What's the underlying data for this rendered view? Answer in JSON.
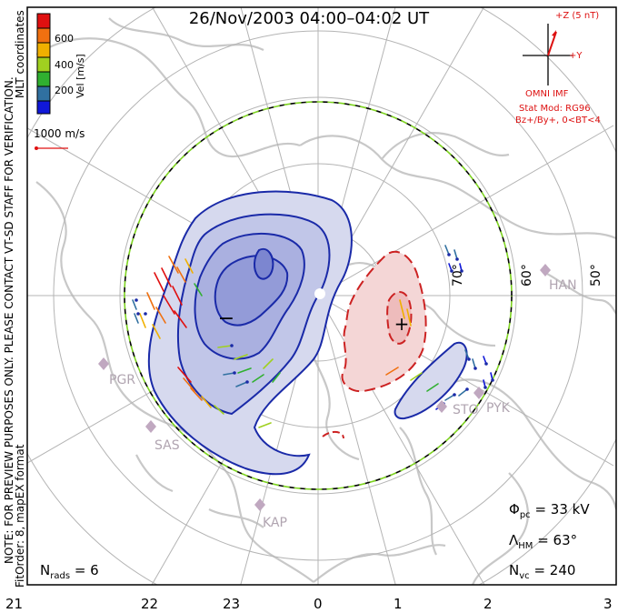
{
  "title": "26/Nov/2003 04:00–04:02 UT",
  "side_notes": {
    "preview": "NOTE: FOR PREVIEW PURPOSES ONLY. PLEASE CONTACT VT-SD STAFF FOR VERIFICATION.",
    "fit": "FitOrder: 8, mapEX format",
    "coords": "MLT coordinates"
  },
  "color_scale": {
    "label": "Vel [m/s]",
    "ticks": [
      "600",
      "400",
      "200"
    ],
    "colors": [
      "#e01010",
      "#f07010",
      "#f0b000",
      "#a0d020",
      "#30b030",
      "#3070a0",
      "#1018d8"
    ]
  },
  "vector_scale": {
    "label": "1000 m/s"
  },
  "imf": {
    "z_label": "+Z (5 nT)",
    "y_label": "+Y",
    "source": "OMNI IMF",
    "model": "Stat Mod: RG96",
    "condition": "Bz+/By+, 0<BT<4"
  },
  "stats": {
    "phi_symbol": "Φ",
    "phi_sub": "pc",
    "phi_value": "= 33 kV",
    "lambda_symbol": "Λ",
    "lambda_sub": "HM",
    "lambda_value": "= 63°",
    "nvc_symbol": "N",
    "nvc_sub": "vc",
    "nvc_value": "= 240",
    "nrads_symbol": "N",
    "nrads_sub": "rads",
    "nrads_value": "= 6"
  },
  "mlt_labels": [
    "21",
    "22",
    "23",
    "0",
    "1",
    "2",
    "3"
  ],
  "lat_labels": [
    "70°",
    "60°",
    "50°"
  ],
  "stations": [
    "PGR",
    "SAS",
    "KAP",
    "HAN",
    "STO",
    "PYK"
  ],
  "cell_signs": {
    "negative": "−",
    "positive": "+"
  },
  "colors": {
    "negative_cell": "#1a2aa8",
    "positive_cell": "#cc2222",
    "grid": "#b4b4b4",
    "coast": "#c8c8c8",
    "boundary": "#7ed321"
  }
}
